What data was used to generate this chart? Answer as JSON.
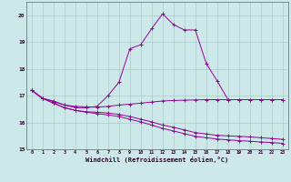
{
  "xlabel": "Windchill (Refroidissement éolien,°C)",
  "x": [
    0,
    1,
    2,
    3,
    4,
    5,
    6,
    7,
    8,
    9,
    10,
    11,
    12,
    13,
    14,
    15,
    16,
    17,
    18,
    19,
    20,
    21,
    22,
    23
  ],
  "line1": [
    17.2,
    16.9,
    16.8,
    16.65,
    16.55,
    16.55,
    16.6,
    17.0,
    17.5,
    18.75,
    18.9,
    19.5,
    20.05,
    19.65,
    19.45,
    19.45,
    18.2,
    17.55,
    16.85,
    16.85,
    16.85,
    16.85,
    16.85,
    16.85
  ],
  "line2": [
    17.2,
    16.9,
    16.78,
    16.65,
    16.6,
    16.58,
    16.57,
    16.6,
    16.65,
    16.68,
    16.72,
    16.76,
    16.8,
    16.82,
    16.83,
    16.84,
    16.85,
    16.85,
    16.85,
    16.85,
    16.85,
    16.85,
    16.85,
    16.85
  ],
  "line3": [
    17.2,
    16.9,
    16.72,
    16.55,
    16.45,
    16.4,
    16.38,
    16.35,
    16.3,
    16.22,
    16.12,
    16.02,
    15.9,
    15.82,
    15.72,
    15.62,
    15.57,
    15.52,
    15.5,
    15.48,
    15.46,
    15.43,
    15.4,
    15.37
  ],
  "line4": [
    17.2,
    16.9,
    16.72,
    16.55,
    16.45,
    16.38,
    16.33,
    16.28,
    16.22,
    16.12,
    16.02,
    15.9,
    15.78,
    15.68,
    15.58,
    15.48,
    15.43,
    15.38,
    15.35,
    15.32,
    15.3,
    15.27,
    15.25,
    15.22
  ],
  "color": "#990099",
  "bg_color": "#cce8e8",
  "grid_color": "#aacccc",
  "ylim_min": 15.0,
  "ylim_max": 20.5,
  "yticks": [
    15,
    16,
    17,
    18,
    19,
    20
  ],
  "xticks": [
    0,
    1,
    2,
    3,
    4,
    5,
    6,
    7,
    8,
    9,
    10,
    11,
    12,
    13,
    14,
    15,
    16,
    17,
    18,
    19,
    20,
    21,
    22,
    23
  ]
}
